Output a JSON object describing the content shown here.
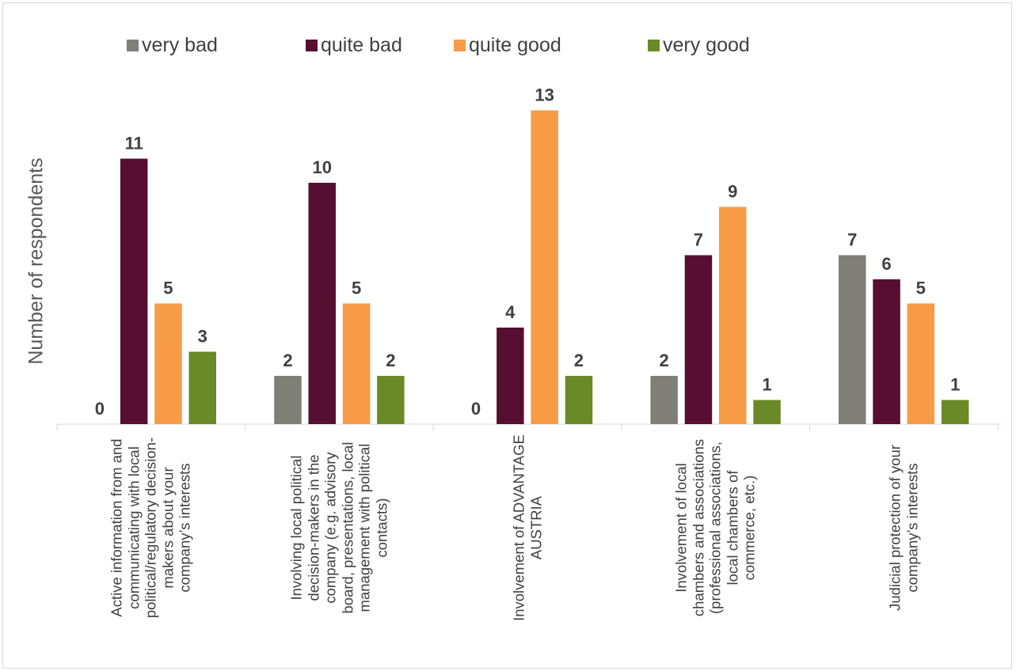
{
  "chart_data": {
    "type": "bar",
    "ylabel": "Number of respondents",
    "ylim": [
      0,
      13.5
    ],
    "grid": false,
    "legend_position": "top",
    "categories": [
      "Active information from and communicating with local political/regulatory decision-makers about your company’s interests",
      "Involving local political decision-makers in the company (e.g. advisory board, presentations, local management with political contacts)",
      "Involvement of ADVANTAGE AUSTRIA",
      "Involvement of local chambers and associations (professional associations, local chambers of commerce, etc.)",
      "Judicial protection of your company’s interests"
    ],
    "series": [
      {
        "name": "very bad",
        "color": "#7f7f77",
        "values": [
          0,
          2,
          0,
          2,
          7
        ]
      },
      {
        "name": "quite bad",
        "color": "#560f31",
        "values": [
          11,
          10,
          4,
          7,
          6
        ]
      },
      {
        "name": "quite good",
        "color": "#f79b47",
        "values": [
          5,
          5,
          13,
          9,
          5
        ]
      },
      {
        "name": "very good",
        "color": "#6a8a27",
        "values": [
          3,
          2,
          2,
          1,
          1
        ]
      }
    ]
  }
}
